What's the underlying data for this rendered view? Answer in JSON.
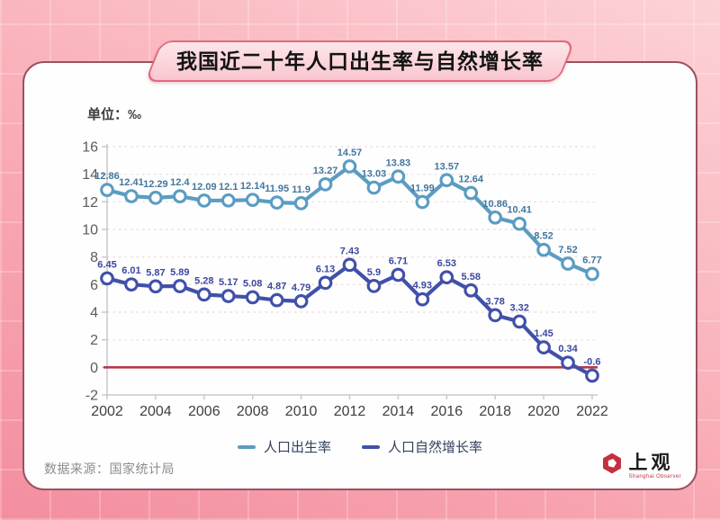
{
  "header": {
    "title": "我国近二十年人口出生率与自然增长率"
  },
  "chart": {
    "unit_label": "单位：‰"
  },
  "chart_data": {
    "type": "line",
    "x": [
      2002,
      2003,
      2004,
      2005,
      2006,
      2007,
      2008,
      2009,
      2010,
      2011,
      2012,
      2013,
      2014,
      2015,
      2016,
      2017,
      2018,
      2019,
      2020,
      2021,
      2022
    ],
    "xtick_labels": [
      2002,
      2004,
      2006,
      2008,
      2010,
      2012,
      2014,
      2016,
      2018,
      2020,
      2022
    ],
    "series": [
      {
        "name": "人口出生率",
        "color": "#5b9cc2",
        "label_color": "#41779e",
        "values": [
          12.86,
          12.41,
          12.29,
          12.4,
          12.09,
          12.1,
          12.14,
          11.95,
          11.9,
          13.27,
          14.57,
          13.03,
          13.83,
          11.99,
          13.57,
          12.64,
          10.86,
          10.41,
          8.52,
          7.52,
          6.77
        ]
      },
      {
        "name": "人口自然增长率",
        "color": "#4150aa",
        "label_color": "#3b49a0",
        "values": [
          6.45,
          6.01,
          5.87,
          5.89,
          5.28,
          5.17,
          5.08,
          4.87,
          4.79,
          6.13,
          7.43,
          5.9,
          6.71,
          4.93,
          6.53,
          5.58,
          3.78,
          3.32,
          1.45,
          0.34,
          -0.6
        ]
      }
    ],
    "ylim": [
      -2,
      16
    ],
    "ytick_step": 2,
    "grid": "faint horizontal dashed",
    "legend_position": "bottom center",
    "zero_line_color": "#b43a4d",
    "title": "我国近二十年人口出生率与自然增长率",
    "ylabel": "单位：‰"
  },
  "footer": {
    "source": "数据来源：国家统计局",
    "logo": {
      "name_zh": "上观",
      "name_en": "Shanghai Observer",
      "brand_color": "#c5303e"
    }
  },
  "colors": {
    "background_pink": "#f9abb5",
    "card_border": "#9b5160",
    "banner_border": "#e2697f",
    "banner_fill": "#f9c6cf",
    "axis_label": "#5b5b5b"
  }
}
